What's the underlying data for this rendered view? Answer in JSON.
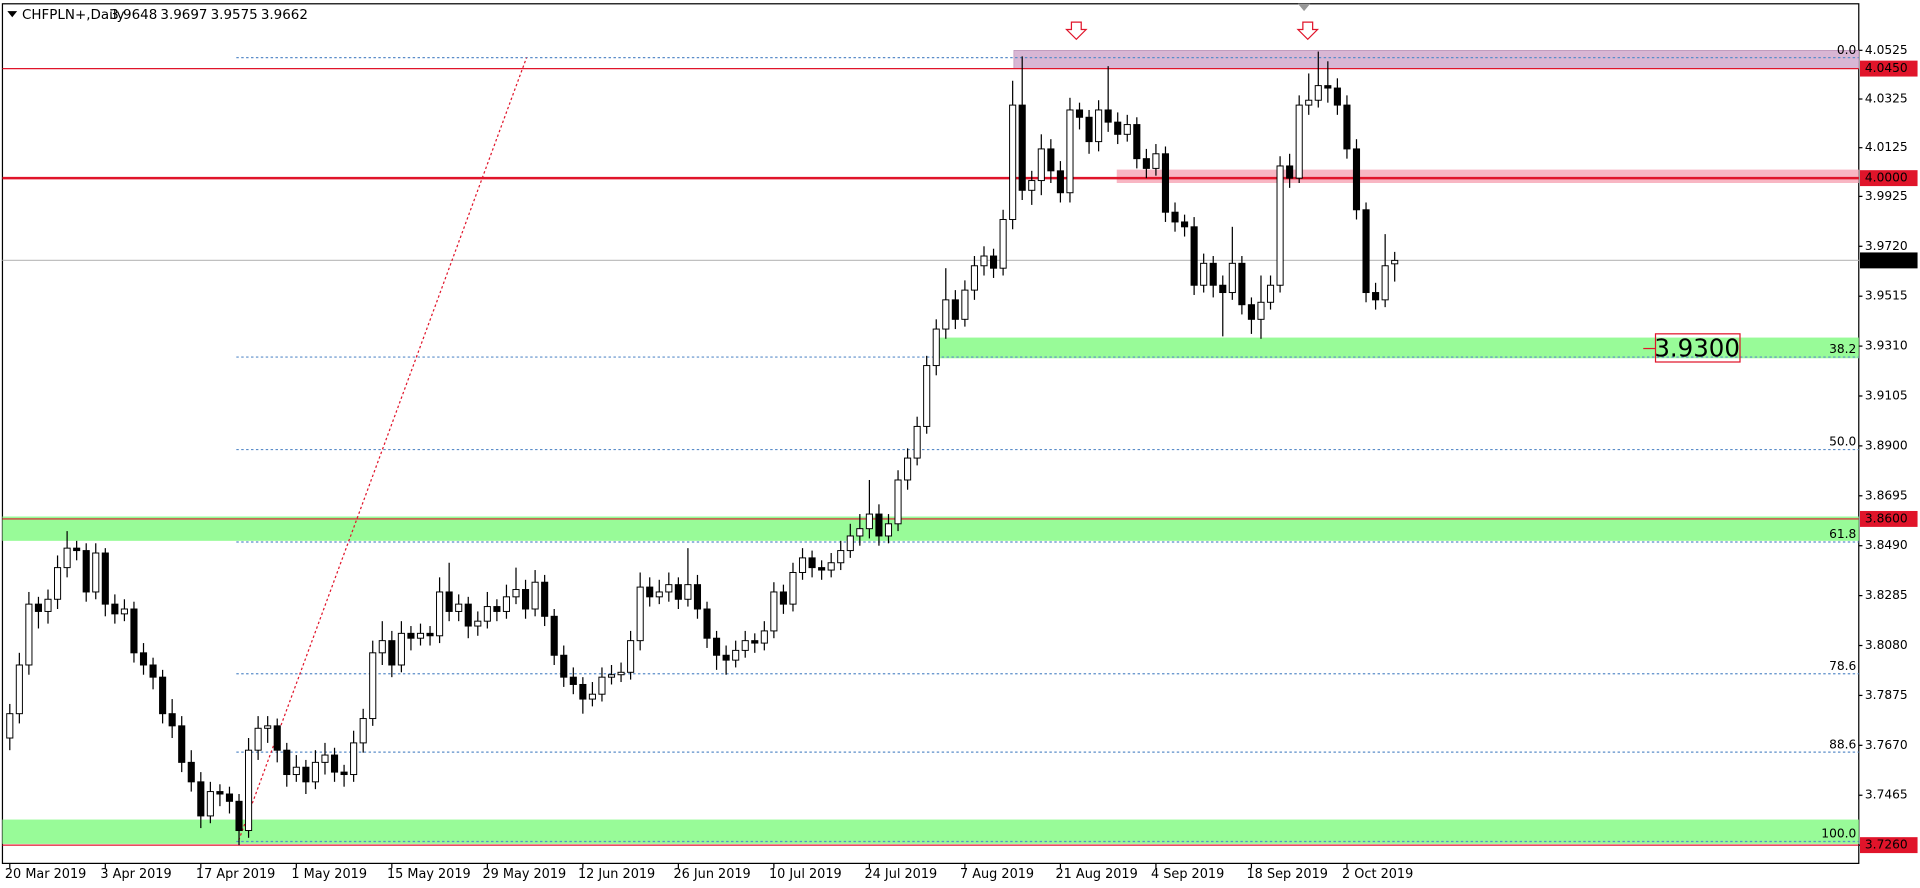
{
  "chart_data": {
    "type": "candlestick",
    "title": "CHFPLN+,Daily",
    "ylim": [
      3.7185,
      4.0691
    ],
    "yticks": [
      4.0525,
      4.0325,
      4.0125,
      3.9925,
      {
        "value": 3.972,
        "label": "3.9720"
      },
      3.9515,
      {
        "value": 3.931,
        "label": "3.9310"
      },
      3.9105,
      {
        "value": 3.89,
        "label": "3.8900"
      },
      3.8695,
      {
        "value": 3.849,
        "label": "3.8490"
      },
      3.8285,
      {
        "value": 3.808,
        "label": "3.8080"
      },
      3.7875,
      {
        "value": 3.767,
        "label": "3.7670"
      },
      3.7465,
      {
        "value": 3.726,
        "label": "3.7260"
      }
    ],
    "categories": [
      "20 Mar 2019",
      null,
      null,
      null,
      null,
      null,
      null,
      null,
      null,
      null,
      "3 Apr 2019",
      null,
      null,
      null,
      null,
      null,
      null,
      null,
      null,
      null,
      "17 Apr 2019",
      null,
      null,
      null,
      null,
      null,
      null,
      null,
      null,
      null,
      "1 May 2019",
      null,
      null,
      null,
      null,
      null,
      null,
      null,
      null,
      null,
      "15 May 2019",
      null,
      null,
      null,
      null,
      null,
      null,
      null,
      null,
      null,
      "29 May 2019",
      null,
      null,
      null,
      null,
      null,
      null,
      null,
      null,
      null,
      "12 Jun 2019",
      null,
      null,
      null,
      null,
      null,
      null,
      null,
      null,
      null,
      "26 Jun 2019",
      null,
      null,
      null,
      null,
      null,
      null,
      null,
      null,
      null,
      "10 Jul 2019",
      null,
      null,
      null,
      null,
      null,
      null,
      null,
      null,
      null,
      "24 Jul 2019",
      null,
      null,
      null,
      null,
      null,
      null,
      null,
      null,
      null,
      "7 Aug 2019",
      null,
      null,
      null,
      null,
      null,
      null,
      null,
      null,
      null,
      "21 Aug 2019",
      null,
      null,
      null,
      null,
      null,
      null,
      null,
      null,
      null,
      "4 Sep 2019",
      null,
      null,
      null,
      null,
      null,
      null,
      null,
      null,
      null,
      "18 Sep 2019",
      null,
      null,
      null,
      null,
      null,
      null,
      null,
      null,
      null,
      "2 Oct 2019",
      null,
      null,
      null,
      null,
      null
    ],
    "ohlc": [
      [
        3.77,
        3.784,
        3.765,
        3.78
      ],
      [
        3.78,
        3.805,
        3.776,
        3.8
      ],
      [
        3.8,
        3.83,
        3.796,
        3.825
      ],
      [
        3.825,
        3.828,
        3.815,
        3.822
      ],
      [
        3.822,
        3.831,
        3.817,
        3.827
      ],
      [
        3.827,
        3.845,
        3.823,
        3.84
      ],
      [
        3.84,
        3.855,
        3.836,
        3.848
      ],
      [
        3.848,
        3.851,
        3.843,
        3.847
      ],
      [
        3.847,
        3.85,
        3.826,
        3.83
      ],
      [
        3.83,
        3.85,
        3.827,
        3.846
      ],
      [
        3.846,
        3.848,
        3.82,
        3.825
      ],
      [
        3.825,
        3.829,
        3.817,
        3.821
      ],
      [
        3.821,
        3.827,
        3.818,
        3.823
      ],
      [
        3.823,
        3.826,
        3.801,
        3.805
      ],
      [
        3.805,
        3.809,
        3.796,
        3.8
      ],
      [
        3.8,
        3.803,
        3.79,
        3.795
      ],
      [
        3.795,
        3.798,
        3.776,
        3.78
      ],
      [
        3.78,
        3.786,
        3.77,
        3.775
      ],
      [
        3.775,
        3.779,
        3.756,
        3.76
      ],
      [
        3.76,
        3.765,
        3.748,
        3.752
      ],
      [
        3.752,
        3.756,
        3.733,
        3.738
      ],
      [
        3.738,
        3.752,
        3.735,
        3.748
      ],
      [
        3.748,
        3.751,
        3.742,
        3.747
      ],
      [
        3.747,
        3.75,
        3.739,
        3.744
      ],
      [
        3.744,
        3.747,
        3.726,
        3.732
      ],
      [
        3.732,
        3.77,
        3.729,
        3.765
      ],
      [
        3.765,
        3.779,
        3.761,
        3.774
      ],
      [
        3.774,
        3.779,
        3.768,
        3.775
      ],
      [
        3.775,
        3.778,
        3.76,
        3.765
      ],
      [
        3.765,
        3.768,
        3.75,
        3.755
      ],
      [
        3.755,
        3.763,
        3.752,
        3.758
      ],
      [
        3.758,
        3.761,
        3.747,
        3.752
      ],
      [
        3.752,
        3.765,
        3.749,
        3.76
      ],
      [
        3.76,
        3.768,
        3.755,
        3.763
      ],
      [
        3.763,
        3.766,
        3.752,
        3.756
      ],
      [
        3.756,
        3.759,
        3.75,
        3.755
      ],
      [
        3.755,
        3.773,
        3.752,
        3.768
      ],
      [
        3.768,
        3.782,
        3.764,
        3.778
      ],
      [
        3.778,
        3.81,
        3.775,
        3.805
      ],
      [
        3.805,
        3.818,
        3.8,
        3.81
      ],
      [
        3.81,
        3.814,
        3.795,
        3.8
      ],
      [
        3.8,
        3.818,
        3.797,
        3.813
      ],
      [
        3.813,
        3.816,
        3.806,
        3.811
      ],
      [
        3.811,
        3.817,
        3.808,
        3.813
      ],
      [
        3.813,
        3.816,
        3.808,
        3.812
      ],
      [
        3.812,
        3.836,
        3.809,
        3.83
      ],
      [
        3.83,
        3.842,
        3.818,
        3.822
      ],
      [
        3.822,
        3.829,
        3.818,
        3.825
      ],
      [
        3.825,
        3.828,
        3.811,
        3.816
      ],
      [
        3.816,
        3.822,
        3.812,
        3.818
      ],
      [
        3.818,
        3.83,
        3.815,
        3.824
      ],
      [
        3.824,
        3.827,
        3.818,
        3.822
      ],
      [
        3.822,
        3.833,
        3.819,
        3.828
      ],
      [
        3.828,
        3.84,
        3.825,
        3.831
      ],
      [
        3.831,
        3.835,
        3.819,
        3.823
      ],
      [
        3.823,
        3.839,
        3.82,
        3.834
      ],
      [
        3.834,
        3.837,
        3.816,
        3.82
      ],
      [
        3.82,
        3.823,
        3.8,
        3.804
      ],
      [
        3.804,
        3.808,
        3.791,
        3.795
      ],
      [
        3.795,
        3.799,
        3.788,
        3.792
      ],
      [
        3.792,
        3.795,
        3.78,
        3.786
      ],
      [
        3.786,
        3.793,
        3.783,
        3.788
      ],
      [
        3.788,
        3.799,
        3.785,
        3.795
      ],
      [
        3.795,
        3.8,
        3.792,
        3.796
      ],
      [
        3.796,
        3.801,
        3.793,
        3.797
      ],
      [
        3.797,
        3.814,
        3.794,
        3.81
      ],
      [
        3.81,
        3.838,
        3.806,
        3.832
      ],
      [
        3.832,
        3.836,
        3.824,
        3.828
      ],
      [
        3.828,
        3.835,
        3.825,
        3.83
      ],
      [
        3.83,
        3.838,
        3.826,
        3.833
      ],
      [
        3.833,
        3.836,
        3.823,
        3.827
      ],
      [
        3.827,
        3.848,
        3.824,
        3.833
      ],
      [
        3.833,
        3.837,
        3.819,
        3.823
      ],
      [
        3.823,
        3.826,
        3.807,
        3.811
      ],
      [
        3.811,
        3.814,
        3.798,
        3.804
      ],
      [
        3.804,
        3.808,
        3.796,
        3.802
      ],
      [
        3.802,
        3.81,
        3.799,
        3.806
      ],
      [
        3.806,
        3.814,
        3.803,
        3.81
      ],
      [
        3.81,
        3.813,
        3.805,
        3.809
      ],
      [
        3.809,
        3.818,
        3.806,
        3.814
      ],
      [
        3.814,
        3.834,
        3.811,
        3.83
      ],
      [
        3.83,
        3.833,
        3.821,
        3.825
      ],
      [
        3.825,
        3.842,
        3.822,
        3.838
      ],
      [
        3.838,
        3.848,
        3.835,
        3.844
      ],
      [
        3.844,
        3.847,
        3.836,
        3.84
      ],
      [
        3.84,
        3.843,
        3.835,
        3.839
      ],
      [
        3.839,
        3.846,
        3.836,
        3.842
      ],
      [
        3.842,
        3.851,
        3.839,
        3.847
      ],
      [
        3.847,
        3.858,
        3.844,
        3.853
      ],
      [
        3.853,
        3.862,
        3.849,
        3.856
      ],
      [
        3.856,
        3.876,
        3.852,
        3.862
      ],
      [
        3.862,
        3.866,
        3.849,
        3.853
      ],
      [
        3.853,
        3.862,
        3.85,
        3.858
      ],
      [
        3.858,
        3.88,
        3.855,
        3.876
      ],
      [
        3.876,
        3.889,
        3.872,
        3.885
      ],
      [
        3.885,
        3.902,
        3.882,
        3.898
      ],
      [
        3.898,
        3.927,
        3.895,
        3.923
      ],
      [
        3.923,
        3.942,
        3.919,
        3.938
      ],
      [
        3.938,
        3.963,
        3.934,
        3.95
      ],
      [
        3.95,
        3.954,
        3.938,
        3.942
      ],
      [
        3.942,
        3.958,
        3.939,
        3.954
      ],
      [
        3.954,
        3.968,
        3.95,
        3.964
      ],
      [
        3.964,
        3.972,
        3.96,
        3.968
      ],
      [
        3.968,
        3.971,
        3.959,
        3.963
      ],
      [
        3.963,
        3.987,
        3.96,
        3.983
      ],
      [
        3.983,
        4.04,
        3.979,
        4.03
      ],
      [
        4.03,
        4.05,
        3.991,
        3.995
      ],
      [
        3.995,
        4.003,
        3.989,
        3.999
      ],
      [
        3.999,
        4.018,
        3.993,
        4.012
      ],
      [
        4.012,
        4.016,
        3.998,
        4.003
      ],
      [
        4.003,
        4.007,
        3.99,
        3.994
      ],
      [
        3.994,
        4.033,
        3.99,
        4.028
      ],
      [
        4.028,
        4.031,
        4.02,
        4.025
      ],
      [
        4.025,
        4.028,
        4.01,
        4.015
      ],
      [
        4.015,
        4.032,
        4.011,
        4.028
      ],
      [
        4.028,
        4.046,
        4.019,
        4.023
      ],
      [
        4.023,
        4.027,
        4.014,
        4.018
      ],
      [
        4.018,
        4.026,
        4.015,
        4.022
      ],
      [
        4.022,
        4.025,
        4.004,
        4.008
      ],
      [
        4.008,
        4.012,
        4.0,
        4.004
      ],
      [
        4.004,
        4.014,
        4.001,
        4.01
      ],
      [
        4.01,
        4.013,
        3.982,
        3.986
      ],
      [
        3.986,
        3.99,
        3.978,
        3.982
      ],
      [
        3.982,
        3.985,
        3.976,
        3.98
      ],
      [
        3.98,
        3.984,
        3.952,
        3.956
      ],
      [
        3.956,
        3.969,
        3.953,
        3.965
      ],
      [
        3.965,
        3.968,
        3.951,
        3.956
      ],
      [
        3.956,
        3.96,
        3.935,
        3.953
      ],
      [
        3.953,
        3.98,
        3.95,
        3.965
      ],
      [
        3.965,
        3.968,
        3.944,
        3.948
      ],
      [
        3.948,
        3.951,
        3.936,
        3.942
      ],
      [
        3.942,
        3.96,
        3.934,
        3.949
      ],
      [
        3.949,
        3.96,
        3.946,
        3.956
      ],
      [
        3.956,
        4.009,
        3.953,
        4.005
      ],
      [
        4.005,
        4.01,
        3.996,
        4.0
      ],
      [
        4.0,
        4.034,
        3.998,
        4.03
      ],
      [
        4.03,
        4.043,
        4.026,
        4.032
      ],
      [
        4.032,
        4.052,
        4.029,
        4.038
      ],
      [
        4.038,
        4.048,
        4.031,
        4.037
      ],
      [
        4.037,
        4.041,
        4.026,
        4.03
      ],
      [
        4.03,
        4.034,
        4.008,
        4.012
      ],
      [
        4.012,
        4.016,
        3.983,
        3.987
      ],
      [
        3.987,
        3.99,
        3.949,
        3.953
      ],
      [
        3.953,
        3.957,
        3.946,
        3.95
      ],
      [
        3.95,
        3.977,
        3.947,
        3.964
      ],
      [
        3.9648,
        3.9697,
        3.9575,
        3.9662
      ]
    ],
    "zones": [
      {
        "from": 4.045,
        "to": 4.0525,
        "color": "#d8b6d4"
      },
      {
        "from": 3.998,
        "to": 4.0035,
        "color": "#f8b6c3"
      },
      {
        "from": 3.926,
        "to": 3.9345,
        "color": "#98fb98"
      },
      {
        "from": 3.851,
        "to": 3.861,
        "color": "#98fb98"
      },
      {
        "from": 3.7265,
        "to": 3.7365,
        "color": "#98fb98"
      }
    ],
    "levels": [
      {
        "value": 4.045,
        "label": "4.0450",
        "color": "#e0142a",
        "width": 1
      },
      {
        "value": 4.0,
        "label": "4.0000",
        "color": "#e0142a",
        "width": 2
      },
      {
        "value": 3.86,
        "label": "3.8600",
        "color": "#e0142a",
        "width": 1
      },
      {
        "value": 3.726,
        "label": "3.7260",
        "color": "#e0142a",
        "width": 1
      }
    ],
    "fibonacci": {
      "from": 3.7275,
      "to": 4.0495,
      "color": "#5b8dc9",
      "levels": [
        {
          "value": 0,
          "label": "0.0"
        },
        38.2,
        {
          "value": 50,
          "label": "50.0"
        },
        61.8,
        78.6,
        88.6,
        {
          "value": 100,
          "label": "100.0"
        }
      ]
    },
    "annotations": [
      {
        "value": 3.93,
        "label": "3.9300",
        "color": "#e0142a"
      }
    ]
  }
}
